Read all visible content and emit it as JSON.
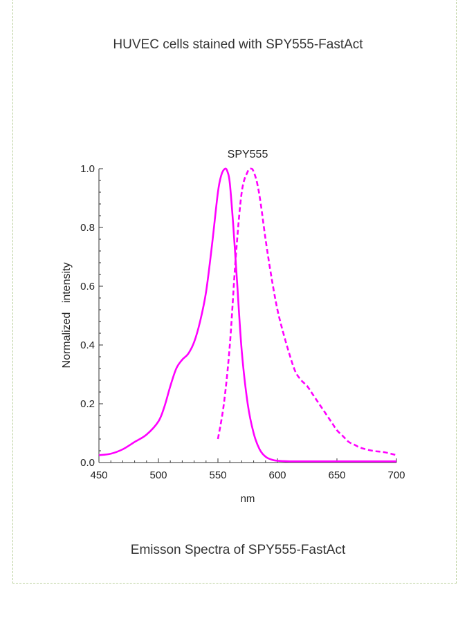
{
  "heading": "HUVEC cells stained with SPY555-FastAct",
  "caption": "Emisson Spectra of SPY555-FastAct",
  "colors": {
    "curve": "#ff00ff",
    "border": "#b9cf9a",
    "axis": "#333333"
  },
  "chart_data": {
    "type": "line",
    "title": "SPY555",
    "xlabel": "nm",
    "ylabel": "Normalized   intensity",
    "xlim": [
      450,
      700
    ],
    "ylim": [
      0,
      1.0
    ],
    "xticks": [
      450,
      500,
      550,
      600,
      650,
      700
    ],
    "yticks": [
      0.0,
      0.2,
      0.4,
      0.6,
      0.8,
      1.0
    ],
    "ytick_labels": [
      "0.0",
      "0.2",
      "0.4",
      "0.6",
      "0.8",
      "1.0"
    ],
    "grid": false,
    "series": [
      {
        "style": "solid",
        "x": [
          450,
          460,
          470,
          480,
          490,
          500,
          505,
          510,
          515,
          520,
          525,
          530,
          535,
          540,
          545,
          550,
          553,
          556,
          558,
          560,
          563,
          566,
          570,
          575,
          580,
          585,
          590,
          595,
          600,
          610,
          620,
          650,
          700
        ],
        "y": [
          0.025,
          0.03,
          0.045,
          0.07,
          0.095,
          0.14,
          0.19,
          0.26,
          0.32,
          0.35,
          0.37,
          0.41,
          0.48,
          0.58,
          0.74,
          0.92,
          0.98,
          1.0,
          0.99,
          0.95,
          0.8,
          0.62,
          0.38,
          0.2,
          0.1,
          0.045,
          0.02,
          0.01,
          0.006,
          0.004,
          0.004,
          0.004,
          0.004
        ]
      },
      {
        "style": "dashed",
        "x": [
          550,
          555,
          560,
          565,
          570,
          575,
          578,
          580,
          583,
          586,
          590,
          595,
          600,
          605,
          610,
          615,
          620,
          625,
          630,
          635,
          640,
          645,
          650,
          655,
          660,
          665,
          670,
          680,
          690,
          700
        ],
        "y": [
          0.08,
          0.2,
          0.4,
          0.7,
          0.92,
          0.99,
          1.0,
          0.99,
          0.95,
          0.88,
          0.76,
          0.63,
          0.52,
          0.44,
          0.37,
          0.31,
          0.28,
          0.26,
          0.23,
          0.2,
          0.17,
          0.14,
          0.11,
          0.09,
          0.07,
          0.06,
          0.05,
          0.04,
          0.035,
          0.025
        ]
      }
    ]
  }
}
